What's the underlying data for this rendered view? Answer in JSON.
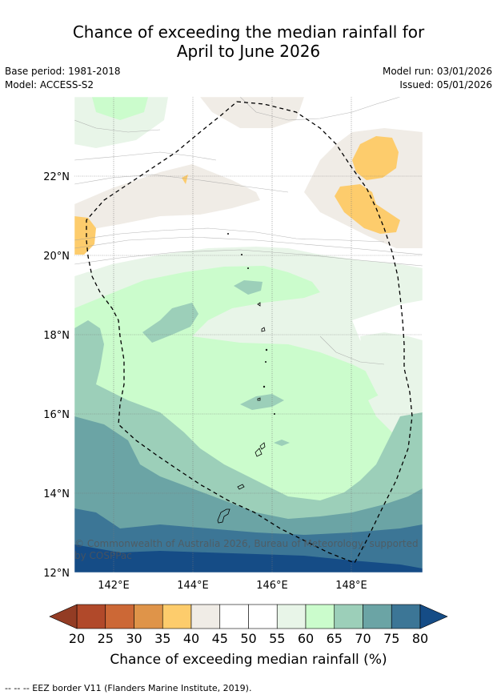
{
  "title_line1": "Chance of exceeding the median rainfall for",
  "title_line2": "April to June 2026",
  "base_period": "Base period: 1981-2018",
  "model": "Model: ACCESS-S2",
  "model_run": "Model run: 03/01/2026",
  "issued": "Issued: 05/01/2026",
  "lat_labels": [
    "22°N",
    "20°N",
    "18°N",
    "16°N",
    "14°N",
    "12°N"
  ],
  "lon_labels": [
    "142°E",
    "144°E",
    "146°E",
    "148°E"
  ],
  "credit": "© Commonwealth of Australia 2026, Bureau of Meteorology, supported by COSPPac",
  "colorbar": {
    "ticks": [
      "20",
      "25",
      "30",
      "35",
      "40",
      "45",
      "50",
      "55",
      "60",
      "65",
      "70",
      "75",
      "80"
    ],
    "colors": [
      "#b1492a",
      "#cc6836",
      "#df9449",
      "#fdcc6c",
      "#f0ece6",
      "#ffffff",
      "#ffffff",
      "#e8f5e8",
      "#cbfccc",
      "#9ccfb9",
      "#6ba4a5",
      "#3c7696"
    ],
    "under_color": "#933c24",
    "over_color": "#154c86",
    "title": "Chance of exceeding median rainfall (%)"
  },
  "legend_footer": "--  --  -- EEZ border V11 (Flanders Marine Institute, 2019)."
}
